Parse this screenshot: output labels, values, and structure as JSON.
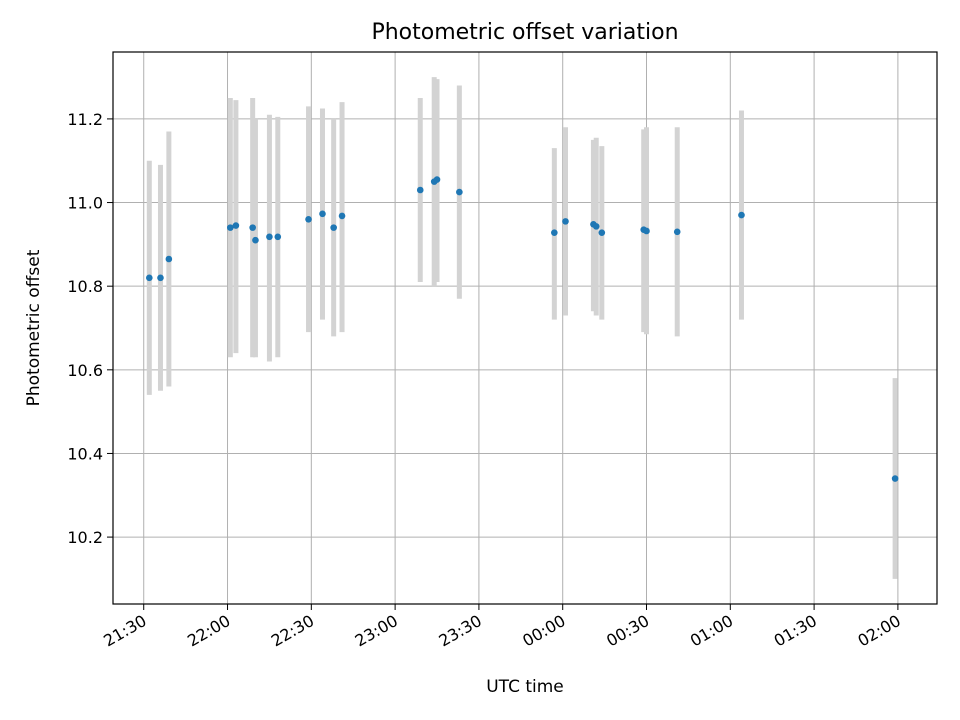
{
  "chart_data": {
    "type": "scatter",
    "title": "Photometric offset variation",
    "xlabel": "UTC time",
    "ylabel": "Photometric offset",
    "x_ticks": [
      "21:30",
      "22:00",
      "22:30",
      "23:00",
      "23:30",
      "00:00",
      "00:30",
      "01:00",
      "01:30",
      "02:00"
    ],
    "y_ticks": [
      "10.2",
      "10.4",
      "10.6",
      "10.8",
      "11.0",
      "11.2"
    ],
    "ylim": [
      10.04,
      11.36
    ],
    "xlim": [
      "21:19",
      "02:14"
    ],
    "grid": true,
    "colors": {
      "point": "#1f77b4",
      "errorbar": "#d3d3d3",
      "grid": "#b0b0b0"
    },
    "series": [
      {
        "points": [
          {
            "x": "21:32",
            "y": 10.82,
            "ylo": 10.54,
            "yhi": 11.1
          },
          {
            "x": "21:36",
            "y": 10.82,
            "ylo": 10.55,
            "yhi": 11.09
          },
          {
            "x": "21:39",
            "y": 10.865,
            "ylo": 10.56,
            "yhi": 11.17
          },
          {
            "x": "22:01",
            "y": 10.94,
            "ylo": 10.63,
            "yhi": 11.25
          },
          {
            "x": "22:03",
            "y": 10.945,
            "ylo": 10.64,
            "yhi": 11.245
          },
          {
            "x": "22:09",
            "y": 10.94,
            "ylo": 10.63,
            "yhi": 11.25
          },
          {
            "x": "22:10",
            "y": 10.91,
            "ylo": 10.63,
            "yhi": 11.2
          },
          {
            "x": "22:15",
            "y": 10.918,
            "ylo": 10.62,
            "yhi": 11.21
          },
          {
            "x": "22:18",
            "y": 10.918,
            "ylo": 10.63,
            "yhi": 11.205
          },
          {
            "x": "22:29",
            "y": 10.96,
            "ylo": 10.69,
            "yhi": 11.23
          },
          {
            "x": "22:34",
            "y": 10.973,
            "ylo": 10.72,
            "yhi": 11.225
          },
          {
            "x": "22:38",
            "y": 10.94,
            "ylo": 10.68,
            "yhi": 11.2
          },
          {
            "x": "22:41",
            "y": 10.968,
            "ylo": 10.69,
            "yhi": 11.24
          },
          {
            "x": "23:09",
            "y": 11.03,
            "ylo": 10.81,
            "yhi": 11.25
          },
          {
            "x": "23:14",
            "y": 11.05,
            "ylo": 10.8,
            "yhi": 11.3
          },
          {
            "x": "23:15",
            "y": 11.055,
            "ylo": 10.81,
            "yhi": 11.295
          },
          {
            "x": "23:23",
            "y": 11.025,
            "ylo": 10.77,
            "yhi": 11.28
          },
          {
            "x": "23:57",
            "y": 10.928,
            "ylo": 10.72,
            "yhi": 11.13
          },
          {
            "x": "00:01",
            "y": 10.955,
            "ylo": 10.73,
            "yhi": 11.18
          },
          {
            "x": "00:11",
            "y": 10.948,
            "ylo": 10.74,
            "yhi": 11.15
          },
          {
            "x": "00:12",
            "y": 10.943,
            "ylo": 10.73,
            "yhi": 11.155
          },
          {
            "x": "00:14",
            "y": 10.928,
            "ylo": 10.72,
            "yhi": 11.135
          },
          {
            "x": "00:29",
            "y": 10.935,
            "ylo": 10.69,
            "yhi": 11.175
          },
          {
            "x": "00:30",
            "y": 10.932,
            "ylo": 10.685,
            "yhi": 11.18
          },
          {
            "x": "00:41",
            "y": 10.93,
            "ylo": 10.68,
            "yhi": 11.18
          },
          {
            "x": "01:04",
            "y": 10.97,
            "ylo": 10.72,
            "yhi": 11.22
          },
          {
            "x": "01:59",
            "y": 10.34,
            "ylo": 10.1,
            "yhi": 10.58
          }
        ]
      }
    ]
  }
}
